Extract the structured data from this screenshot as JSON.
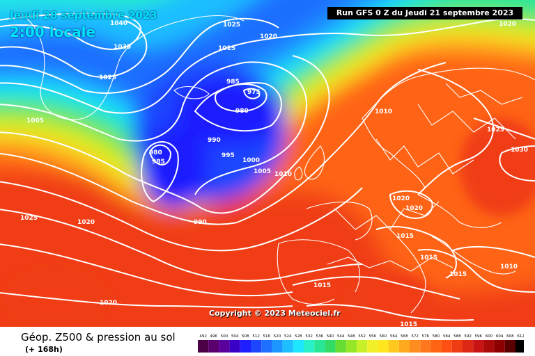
{
  "header": {
    "date_line": "Jeudi 28 septembre 2023",
    "time_line": "2:00 locale",
    "run_line": "Run GFS 0 Z du Jeudi 21 septembre 2023"
  },
  "copyright": "Copyright © 2023 Meteociel.fr",
  "footer": {
    "title": "Géop. Z500 & pression au sol",
    "subtitle": "(+ 168h)"
  },
  "scale": {
    "ticks": [
      "492",
      "496",
      "500",
      "504",
      "508",
      "512",
      "516",
      "520",
      "524",
      "528",
      "532",
      "536",
      "540",
      "544",
      "548",
      "552",
      "556",
      "560",
      "564",
      "568",
      "572",
      "576",
      "580",
      "584",
      "588",
      "592",
      "596",
      "600",
      "604",
      "608",
      "612"
    ],
    "colors": [
      "#4b0045",
      "#5c0070",
      "#5a009c",
      "#3a00c8",
      "#1e1eff",
      "#1e46ff",
      "#1e6eff",
      "#1e96ff",
      "#1ebeff",
      "#1ee6ff",
      "#28f0c8",
      "#28e696",
      "#32dc64",
      "#64dc32",
      "#96e628",
      "#c8f028",
      "#f0f028",
      "#ffe61e",
      "#ffc81e",
      "#ffaa1e",
      "#ff8c1e",
      "#ff781e",
      "#ff6414",
      "#ff5014",
      "#f03c14",
      "#dc2814",
      "#c81414",
      "#aa0a0a",
      "#8c0000",
      "#5a0000",
      "#000000"
    ]
  },
  "isobars": [
    {
      "label": "1040"
    },
    {
      "label": "1030"
    },
    {
      "label": "1025"
    },
    {
      "label": "1025"
    },
    {
      "label": "1020"
    },
    {
      "label": "1015"
    },
    {
      "label": "1020"
    },
    {
      "label": "985"
    },
    {
      "label": "975"
    },
    {
      "label": "980"
    },
    {
      "label": "1005"
    },
    {
      "label": "980"
    },
    {
      "label": "985"
    },
    {
      "label": "990"
    },
    {
      "label": "995"
    },
    {
      "label": "1000"
    },
    {
      "label": "1005"
    },
    {
      "label": "1010"
    },
    {
      "label": "1010"
    },
    {
      "label": "1025"
    },
    {
      "label": "1030"
    },
    {
      "label": "1025"
    },
    {
      "label": "1020"
    },
    {
      "label": "990"
    },
    {
      "label": "1020"
    },
    {
      "label": "1020"
    },
    {
      "label": "1015"
    },
    {
      "label": "1015"
    },
    {
      "label": "1010"
    },
    {
      "label": "1015"
    },
    {
      "label": "1015"
    },
    {
      "label": "1020"
    },
    {
      "label": "1015"
    }
  ]
}
